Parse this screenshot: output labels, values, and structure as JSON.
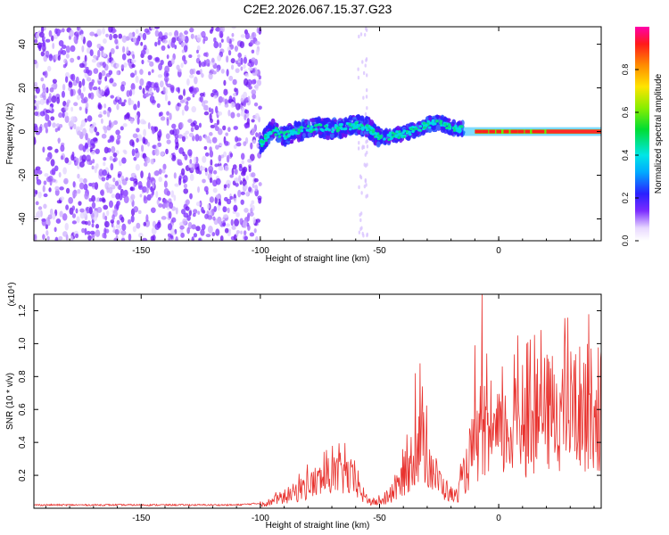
{
  "title": "C2E2.2026.067.15.37.G23",
  "chart_data": [
    {
      "type": "heatmap",
      "xlabel": "Height of straight line (km)",
      "ylabel": "Frequency (Hz)",
      "xlim": [
        -195,
        43
      ],
      "ylim": [
        -50,
        48
      ],
      "xticks": [
        -150,
        -100,
        -50,
        0
      ],
      "xtick_labels": [
        "-150",
        "-100",
        "-50",
        "0"
      ],
      "yticks": [
        -40,
        -20,
        0,
        20,
        40
      ],
      "ytick_labels": [
        "-40",
        "-20",
        "0",
        "20",
        "40"
      ],
      "colorbar": {
        "label": "Normalized spectral amplitude",
        "range": [
          0,
          1
        ],
        "ticks": [
          0,
          0.2,
          0.4,
          0.6,
          0.8
        ],
        "tick_labels": [
          "0.0",
          "0.2",
          "0.4",
          "0.6",
          "0.8"
        ]
      },
      "track": [
        [
          -100,
          -6
        ],
        [
          -95,
          1
        ],
        [
          -90,
          -2
        ],
        [
          -85,
          0
        ],
        [
          -80,
          1
        ],
        [
          -75,
          2
        ],
        [
          -70,
          1
        ],
        [
          -65,
          2
        ],
        [
          -60,
          3
        ],
        [
          -55,
          2
        ],
        [
          -50,
          -3
        ],
        [
          -45,
          -2
        ],
        [
          -40,
          -1
        ],
        [
          -35,
          1
        ],
        [
          -30,
          3
        ],
        [
          -25,
          4
        ],
        [
          -20,
          2
        ],
        [
          -15,
          1
        ],
        [
          -10,
          1
        ],
        [
          -5,
          -1
        ],
        [
          0,
          0
        ],
        [
          10,
          0
        ],
        [
          20,
          0
        ],
        [
          30,
          0
        ],
        [
          43,
          0
        ]
      ],
      "noise_region_x": [
        -195,
        -100
      ]
    },
    {
      "type": "line",
      "xlabel": "Height of straight line (km)",
      "ylabel": "SNR (10 * v/v)",
      "y_multiplier_label": "(x10⁴)",
      "xlim": [
        -195,
        43
      ],
      "ylim": [
        0,
        1.3
      ],
      "xticks": [
        -150,
        -100,
        -50,
        0
      ],
      "xtick_labels": [
        "-150",
        "-100",
        "-50",
        "0"
      ],
      "yticks": [
        0.2,
        0.4,
        0.6,
        0.8,
        1.0,
        1.2
      ],
      "ytick_labels": [
        "0.2",
        "0.4",
        "0.6",
        "0.8",
        "1.0",
        "1.2"
      ],
      "color": "#e8322e",
      "envelope": [
        [
          -195,
          0.02
        ],
        [
          -110,
          0.02
        ],
        [
          -100,
          0.03
        ],
        [
          -95,
          0.06
        ],
        [
          -90,
          0.1
        ],
        [
          -85,
          0.14
        ],
        [
          -80,
          0.2
        ],
        [
          -75,
          0.24
        ],
        [
          -70,
          0.28
        ],
        [
          -65,
          0.3
        ],
        [
          -62,
          0.26
        ],
        [
          -58,
          0.14
        ],
        [
          -55,
          0.07
        ],
        [
          -52,
          0.05
        ],
        [
          -48,
          0.07
        ],
        [
          -45,
          0.1
        ],
        [
          -42,
          0.2
        ],
        [
          -38,
          0.35
        ],
        [
          -35,
          0.5
        ],
        [
          -32,
          0.55
        ],
        [
          -30,
          0.45
        ],
        [
          -27,
          0.3
        ],
        [
          -24,
          0.2
        ],
        [
          -20,
          0.12
        ],
        [
          -18,
          0.1
        ],
        [
          -15,
          0.25
        ],
        [
          -12,
          0.45
        ],
        [
          -10,
          0.55
        ],
        [
          -5,
          0.55
        ],
        [
          0,
          0.62
        ],
        [
          5,
          0.68
        ],
        [
          10,
          0.72
        ],
        [
          15,
          0.78
        ],
        [
          20,
          0.82
        ],
        [
          25,
          0.85
        ],
        [
          30,
          0.86
        ],
        [
          35,
          0.88
        ],
        [
          43,
          0.86
        ]
      ],
      "peaks": [
        [
          -35,
          0.82
        ],
        [
          -33,
          0.88
        ],
        [
          -32,
          0.74
        ],
        [
          -10,
          0.99
        ],
        [
          -7,
          1.3
        ],
        [
          -5,
          0.94
        ],
        [
          8,
          1.05
        ],
        [
          10,
          0.87
        ]
      ]
    }
  ]
}
